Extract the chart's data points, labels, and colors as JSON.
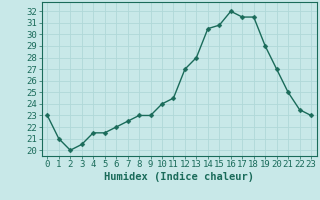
{
  "x": [
    0,
    1,
    2,
    3,
    4,
    5,
    6,
    7,
    8,
    9,
    10,
    11,
    12,
    13,
    14,
    15,
    16,
    17,
    18,
    19,
    20,
    21,
    22,
    23
  ],
  "y": [
    23,
    21,
    20,
    20.5,
    21.5,
    21.5,
    22,
    22.5,
    23,
    23,
    24,
    24.5,
    27,
    28,
    30.5,
    30.8,
    32,
    31.5,
    31.5,
    29,
    27,
    25,
    23.5,
    23
  ],
  "line_color": "#1a6b5a",
  "marker_color": "#1a6b5a",
  "bg_color": "#c8e8e8",
  "grid_color": "#b0d8d8",
  "xlabel": "Humidex (Indice chaleur)",
  "ylim": [
    19.5,
    32.8
  ],
  "xlim": [
    -0.5,
    23.5
  ],
  "yticks": [
    20,
    21,
    22,
    23,
    24,
    25,
    26,
    27,
    28,
    29,
    30,
    31,
    32
  ],
  "xticks": [
    0,
    1,
    2,
    3,
    4,
    5,
    6,
    7,
    8,
    9,
    10,
    11,
    12,
    13,
    14,
    15,
    16,
    17,
    18,
    19,
    20,
    21,
    22,
    23
  ],
  "font_color": "#1a6b5a",
  "font_size": 6.5,
  "xlabel_fontsize": 7.5,
  "marker_size": 2.5,
  "line_width": 1.0
}
